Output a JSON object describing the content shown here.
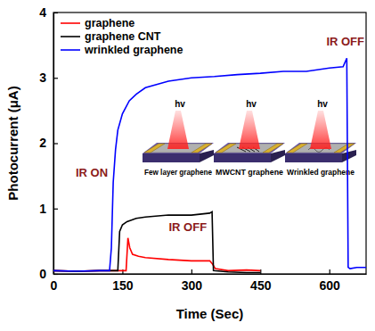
{
  "chart_data": {
    "type": "line",
    "x_label": "Time (Sec)",
    "y_label": "Photocurrent (μA)",
    "xlim": [
      0,
      680
    ],
    "xticks": [
      0,
      150,
      300,
      450,
      600
    ],
    "ylim": [
      0,
      4
    ],
    "yticks": [
      0,
      1,
      2,
      3,
      4
    ],
    "legend": "upper left",
    "grid": false,
    "series": [
      {
        "name": "graphene",
        "color": "#ff0000",
        "x": [
          0,
          50,
          100,
          158,
          162,
          166,
          172,
          185,
          200,
          250,
          300,
          340,
          346,
          352,
          380,
          420,
          450
        ],
        "values": [
          0.05,
          0.04,
          0.05,
          0.05,
          0.55,
          0.4,
          0.3,
          0.27,
          0.25,
          0.22,
          0.2,
          0.2,
          0.15,
          0.08,
          0.05,
          0.06,
          0.05
        ]
      },
      {
        "name": "graphene CNT",
        "color": "#000000",
        "x": [
          0,
          50,
          100,
          140,
          144,
          150,
          160,
          180,
          200,
          250,
          300,
          340,
          345,
          348,
          380,
          420,
          450
        ],
        "values": [
          0.05,
          0.04,
          0.05,
          0.05,
          0.65,
          0.75,
          0.8,
          0.85,
          0.87,
          0.9,
          0.9,
          0.93,
          0.95,
          0.05,
          0.03,
          0.02,
          0.02
        ]
      },
      {
        "name": "wrinkled graphene",
        "color": "#0000ff",
        "x": [
          0,
          50,
          100,
          122,
          126,
          130,
          135,
          140,
          150,
          165,
          180,
          200,
          250,
          300,
          350,
          400,
          450,
          500,
          550,
          600,
          630,
          638,
          641,
          645,
          660,
          680
        ],
        "values": [
          0.05,
          0.04,
          0.05,
          0.05,
          0.4,
          1.4,
          1.9,
          2.2,
          2.45,
          2.65,
          2.75,
          2.85,
          2.95,
          3.0,
          3.02,
          3.05,
          3.07,
          3.1,
          3.1,
          3.15,
          3.17,
          3.3,
          0.1,
          0.08,
          0.1,
          0.1
        ]
      }
    ],
    "annotations": [
      "IR ON",
      "IR OFF",
      "IR OFF"
    ],
    "inset_symbols": [
      "hv",
      "hv",
      "hv"
    ],
    "inset_labels": [
      "Few layer graphene",
      "MWCNT graphene",
      "Wrinkled graphene"
    ]
  }
}
